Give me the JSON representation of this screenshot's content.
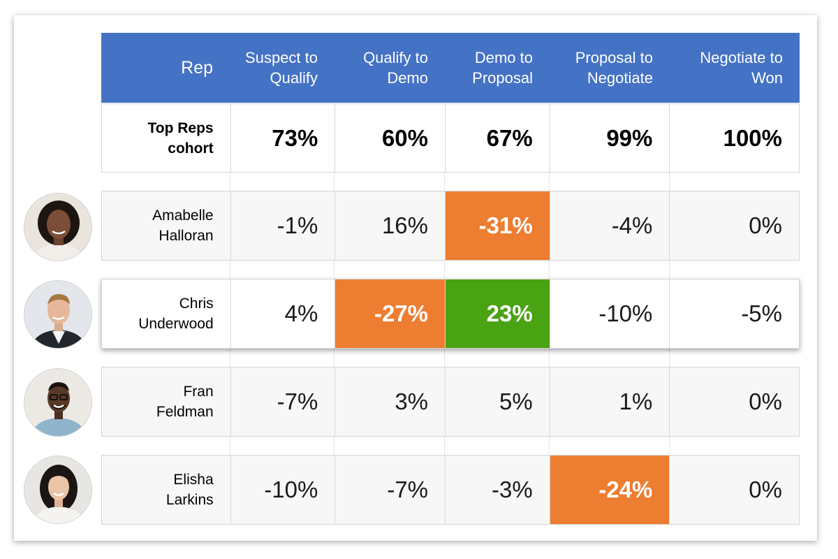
{
  "header": {
    "rep": "Rep",
    "columns": [
      {
        "line1": "Suspect to",
        "line2": "Qualify"
      },
      {
        "line1": "Qualify to",
        "line2": "Demo"
      },
      {
        "line1": "Demo to",
        "line2": "Proposal"
      },
      {
        "line1": "Proposal to",
        "line2": "Negotiate"
      },
      {
        "line1": "Negotiate to",
        "line2": "Won"
      }
    ]
  },
  "cohort": {
    "line1": "Top Reps",
    "line2": "cohort",
    "values": [
      "73%",
      "60%",
      "67%",
      "99%",
      "100%"
    ]
  },
  "reps": [
    {
      "first": "Amabelle",
      "last": "Halloran",
      "values": [
        "-1%",
        "16%",
        "-31%",
        "-4%",
        "0%"
      ]
    },
    {
      "first": "Chris",
      "last": "Underwood",
      "values": [
        "4%",
        "-27%",
        "23%",
        "-10%",
        "-5%"
      ]
    },
    {
      "first": "Fran",
      "last": "Feldman",
      "values": [
        "-7%",
        "3%",
        "5%",
        "1%",
        "0%"
      ]
    },
    {
      "first": "Elisha",
      "last": "Larkins",
      "values": [
        "-10%",
        "-7%",
        "-3%",
        "-24%",
        "0%"
      ]
    }
  ],
  "colors": {
    "header": "#4472c4",
    "negative_highlight": "#ed7d31",
    "positive_highlight": "#4aa312"
  }
}
